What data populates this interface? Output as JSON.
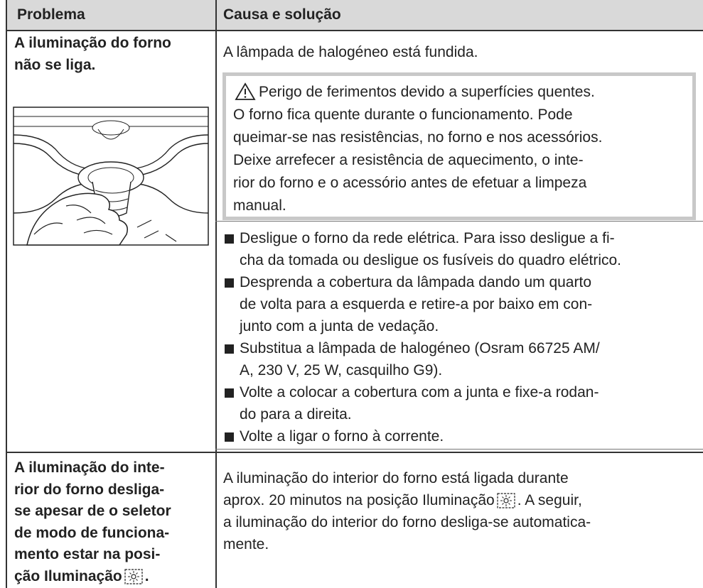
{
  "table": {
    "header": [
      "Problema",
      "Causa e solução"
    ],
    "rows": [
      {
        "problem": [
          "A iluminação do forno",
          "não se liga."
        ],
        "cause": "A lâmpada de halogéneo está fundida.",
        "warning": {
          "title": "Perigo de ferimentos devido a superfícies quentes.",
          "text": [
            "O forno fica quente durante o funcionamento. Pode",
            "queimar-se nas resistências, no forno e nos acessórios.",
            "Deixe arrefecer a resistência de aquecimento, o inte-",
            "rior do forno e o acessório antes de efetuar a limpeza",
            "manual."
          ]
        },
        "steps": [
          [
            "Desligue o forno da rede elétrica. Para isso desligue a fi-",
            "cha da tomada ou desligue os fusíveis do quadro elétrico."
          ],
          [
            "Desprenda a cobertura da lâmpada dando um quarto",
            "de volta para a esquerda e retire-a por baixo em con-",
            "junto com a junta de vedação."
          ],
          [
            "Substitua a lâmpada de halogéneo (Osram 66725 AM/",
            "A, 230 V, 25 W, casquilho G9)."
          ],
          [
            "Volte a colocar a cobertura com a junta e fixe-a rodan-",
            "do para a direita."
          ],
          [
            "Volte a ligar o forno à corrente."
          ]
        ]
      },
      {
        "problem": [
          "A iluminação do inte-",
          "rior do forno desliga-",
          "se apesar de o seletor",
          "de modo de funciona-",
          "mento estar na posi-",
          [
            "ção Iluminação",
            "."
          ]
        ],
        "cause": [
          "A iluminação do interior do forno está ligada durante",
          [
            "aprox. 20 minutos na posição Iluminação",
            ". A seguir,"
          ],
          "a iluminação do interior do forno desliga-se automatica-",
          "mente."
        ]
      }
    ]
  }
}
